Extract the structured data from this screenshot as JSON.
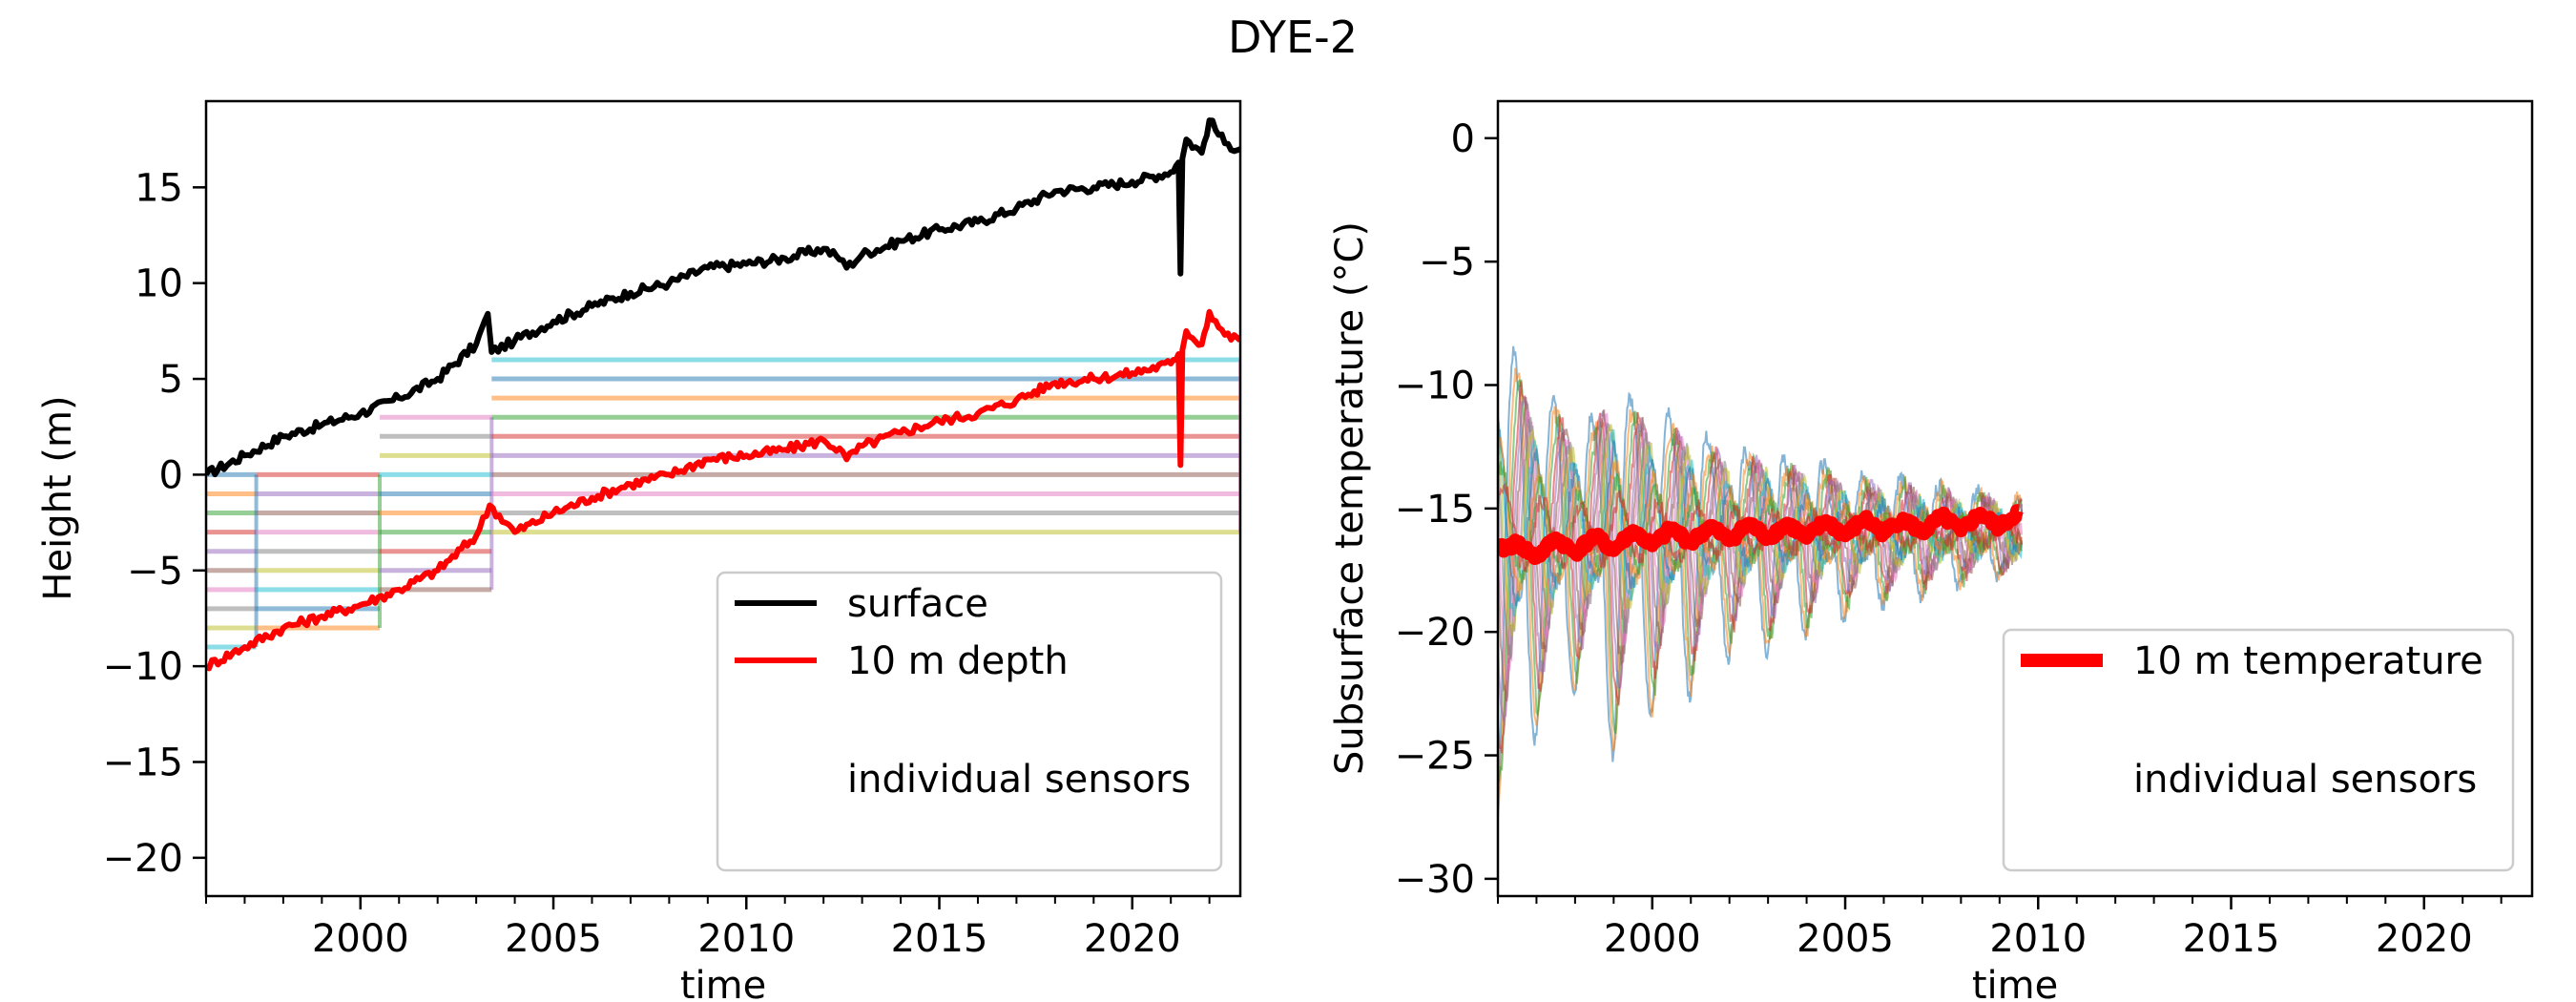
{
  "figure": {
    "title": "DYE-2"
  },
  "chart_data": [
    {
      "type": "line",
      "ylabel": "Height (m)",
      "xlabel": "time",
      "xlim": [
        1996.0,
        2022.8
      ],
      "ylim": [
        -22,
        19.5
      ],
      "xticks": [
        2000,
        2005,
        2010,
        2015,
        2020
      ],
      "yticks": [
        -20,
        -15,
        -10,
        -5,
        0,
        5,
        10,
        15
      ],
      "grid": false,
      "legend": {
        "position": "lower-right",
        "entries": [
          {
            "label": "surface",
            "color": "#000000"
          },
          {
            "label": "10 m depth",
            "color": "#ff0000"
          },
          {
            "label": "individual sensors",
            "color": null
          }
        ]
      },
      "series": [
        {
          "name": "surface",
          "color": "#000000",
          "x": [
            1996.0,
            1997.0,
            1998.0,
            1999.0,
            2000.0,
            2001.0,
            2002.0,
            2003.0,
            2003.3,
            2003.4,
            2004.0,
            2005.0,
            2006.0,
            2007.0,
            2008.0,
            2009.0,
            2010.0,
            2011.0,
            2012.0,
            2012.5,
            2012.6,
            2013.0,
            2014.0,
            2015.0,
            2016.0,
            2017.0,
            2018.0,
            2019.0,
            2020.0,
            2021.0,
            2021.2,
            2021.25,
            2021.3,
            2021.4,
            2021.8,
            2022.0,
            2022.4,
            2022.8
          ],
          "y": [
            0.0,
            1.0,
            2.0,
            2.6,
            3.2,
            4.0,
            5.0,
            6.8,
            8.4,
            6.4,
            7.0,
            8.0,
            8.8,
            9.5,
            10.0,
            10.8,
            11.0,
            11.3,
            11.8,
            11.2,
            10.8,
            11.5,
            12.2,
            12.8,
            13.2,
            13.9,
            14.8,
            15.0,
            15.3,
            15.8,
            16.3,
            10.5,
            16.5,
            17.5,
            16.8,
            18.5,
            17.3,
            17.0
          ]
        },
        {
          "name": "10 m depth",
          "color": "#ff0000",
          "x": [
            1996.0,
            1997.0,
            1998.0,
            1999.0,
            2000.0,
            2001.0,
            2002.0,
            2003.0,
            2003.35,
            2004.0,
            2005.0,
            2006.0,
            2007.0,
            2008.0,
            2009.0,
            2010.0,
            2011.0,
            2012.0,
            2012.5,
            2012.6,
            2013.0,
            2014.0,
            2015.0,
            2016.0,
            2017.0,
            2018.0,
            2019.0,
            2020.0,
            2021.0,
            2021.2,
            2021.25,
            2021.3,
            2021.4,
            2021.8,
            2022.0,
            2022.4,
            2022.8
          ],
          "y": [
            -10.0,
            -9.0,
            -8.0,
            -7.4,
            -6.8,
            -6.0,
            -5.0,
            -3.2,
            -1.6,
            -3.0,
            -2.0,
            -1.2,
            -0.5,
            0.0,
            0.8,
            1.0,
            1.3,
            1.8,
            1.2,
            0.8,
            1.5,
            2.2,
            2.8,
            3.2,
            3.9,
            4.8,
            5.0,
            5.3,
            5.8,
            6.3,
            0.5,
            6.5,
            7.5,
            6.8,
            8.5,
            7.3,
            7.0
          ]
        },
        {
          "name": "sensor_set_1996",
          "color": "#1f77b4",
          "steps": [
            [
              1996.0,
              0.0
            ],
            [
              1997.3,
              -8.2
            ],
            [
              2000.5,
              -6.2
            ]
          ]
        }
      ]
    },
    {
      "type": "line",
      "ylabel": "Subsurface temperature (°C)",
      "xlabel": "time",
      "xlim": [
        1996.0,
        2022.8
      ],
      "ylim": [
        -30.7,
        1.5
      ],
      "xticks": [
        2000,
        2005,
        2010,
        2015,
        2020
      ],
      "yticks": [
        -30,
        -25,
        -20,
        -15,
        -10,
        -5,
        0
      ],
      "grid": false,
      "legend": {
        "position": "lower-right",
        "entries": [
          {
            "label": "10 m temperature",
            "color": "#ff0000"
          },
          {
            "label": "individual sensors",
            "color": null
          }
        ]
      },
      "series": [
        {
          "name": "10 m temperature",
          "color": "#ff0000",
          "x": [
            1996.0,
            1996.5,
            1997.0,
            1997.5,
            1998.0,
            1998.5,
            1999.0,
            1999.5,
            2000.0,
            2000.5,
            2001.0,
            2001.5,
            2002.0,
            2002.5,
            2003.0,
            2003.5,
            2004.0,
            2004.5,
            2005.0,
            2005.5,
            2006.0,
            2006.5,
            2007.0,
            2007.5,
            2008.0,
            2008.5,
            2009.0,
            2009.5
          ],
          "y": [
            -16.7,
            -16.4,
            -17.0,
            -16.2,
            -16.8,
            -16.1,
            -16.7,
            -15.9,
            -16.5,
            -15.8,
            -16.4,
            -15.7,
            -16.3,
            -15.6,
            -16.2,
            -15.6,
            -16.2,
            -15.5,
            -16.1,
            -15.4,
            -16.0,
            -15.4,
            -16.0,
            -15.3,
            -15.9,
            -15.2,
            -15.8,
            -15.1
          ]
        }
      ],
      "sensor_envelope": {
        "x": [
          1996.0,
          1996.5,
          1997.0,
          1997.5,
          1998.0,
          1998.5,
          1999.0,
          1999.5,
          2000.0,
          2000.5,
          2001.0,
          2001.5,
          2002.0,
          2002.5,
          2003.0,
          2003.5,
          2004.0,
          2004.5,
          2005.0,
          2005.5,
          2006.0,
          2006.5,
          2007.0,
          2007.5,
          2008.0,
          2008.5,
          2009.0,
          2009.5
        ],
        "amplitude": [
          14,
          8,
          10,
          6,
          8,
          5,
          11,
          6,
          9,
          5,
          8,
          4,
          6,
          3.5,
          6,
          3,
          5,
          3,
          4,
          2.5,
          3.5,
          2.5,
          3,
          2.2,
          2.5,
          2,
          2.2,
          1.8
        ]
      }
    }
  ]
}
